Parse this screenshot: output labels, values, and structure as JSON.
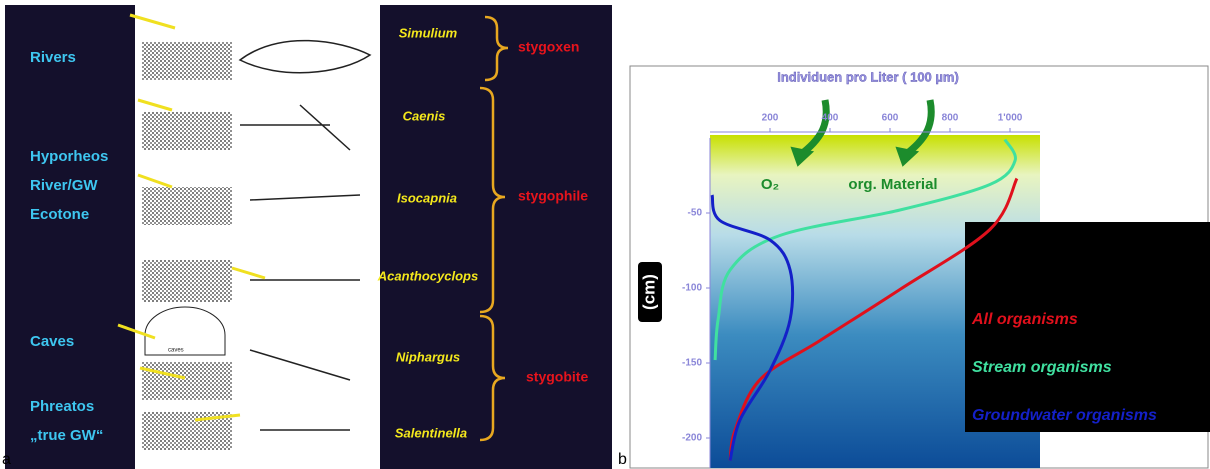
{
  "panel_a": {
    "label": "a",
    "habitats": [
      "Rivers",
      "Hyporheos",
      "River/GW",
      "Ecotone",
      "Caves",
      "Phreatos",
      "„true GW“"
    ],
    "species": [
      "Simulium",
      "Caenis",
      "Isocapnia",
      "Acanthocyclops",
      "Niphargus",
      "Salentinella"
    ],
    "classes": [
      "stygoxen",
      "stygophile",
      "stygobite"
    ],
    "caves_caption": "caves"
  },
  "chart_data": {
    "type": "line",
    "panel_label": "b",
    "title": "Individuen pro Liter ( 100 µm)",
    "y_label": "(cm)",
    "annotations": [
      "O₂",
      "org. Material"
    ],
    "xlim": [
      0,
      1100
    ],
    "ylim": [
      -220,
      0
    ],
    "xticks": [
      200,
      400,
      600,
      800,
      {
        "value": 1000,
        "label": "1'000"
      }
    ],
    "yticks": [
      -50,
      -100,
      -150,
      -200
    ],
    "series": [
      {
        "name": "All organisms",
        "color": "#e0101c",
        "x": [
          1023,
          933,
          633,
          367,
          167,
          83,
          67
        ],
        "values": [
          -27,
          -61,
          -101,
          -135,
          -161,
          -195,
          -215
        ]
      },
      {
        "name": "Stream organisms",
        "color": "#40e0a0",
        "x": [
          983,
          1017,
          933,
          633,
          233,
          67,
          27,
          17
        ],
        "values": [
          -1,
          -15,
          -31,
          -48,
          -65,
          -88,
          -121,
          -148
        ]
      },
      {
        "name": "Groundwater organisms",
        "color": "#1420c8",
        "x": [
          7,
          33,
          200,
          267,
          267,
          200,
          100,
          67
        ],
        "values": [
          -38,
          -55,
          -68,
          -88,
          -121,
          -155,
          -188,
          -215
        ]
      }
    ]
  }
}
